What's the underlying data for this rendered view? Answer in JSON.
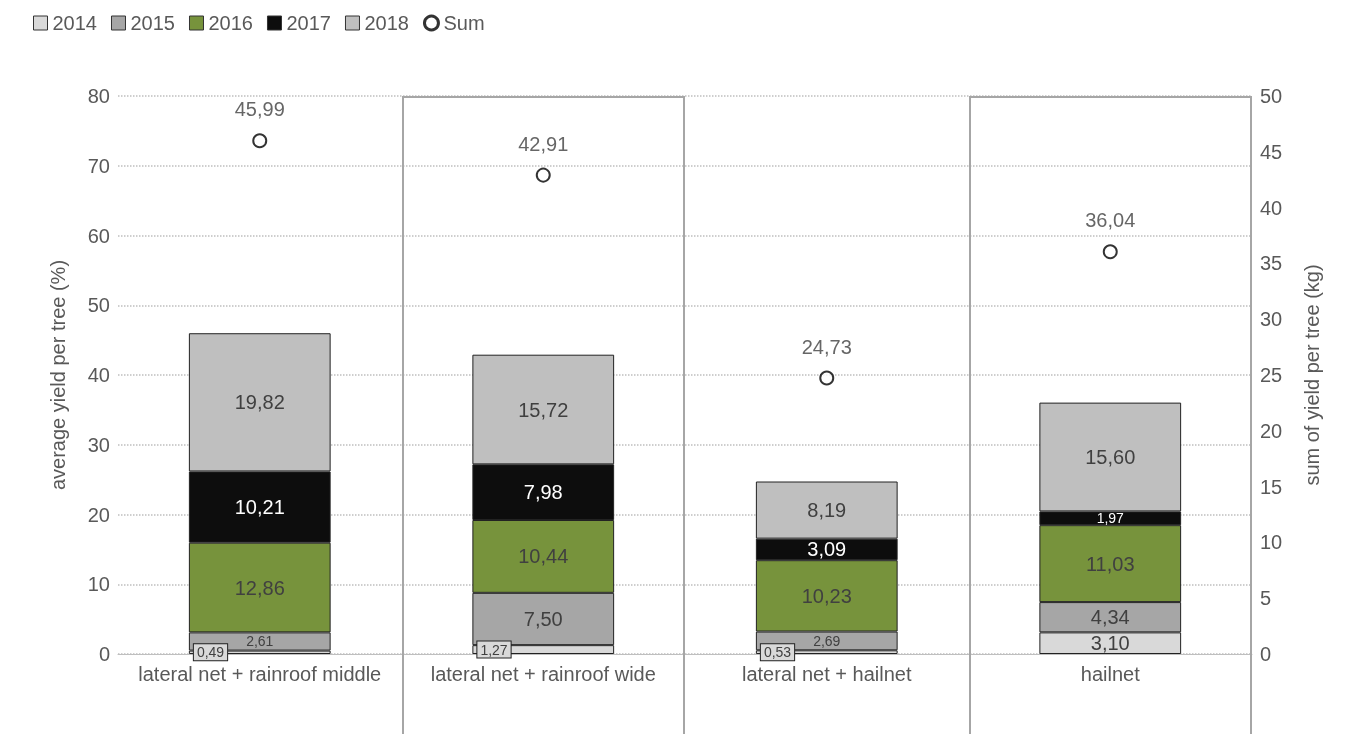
{
  "chart_data": {
    "type": "bar",
    "stacked": true,
    "ylabel": "average yield per tree (%)",
    "y2label": "sum of yield per tree (kg)",
    "categories": [
      "lateral net + rainroof middle",
      "lateral net + rainroof wide",
      "lateral net + hailnet",
      "hailnet"
    ],
    "series": [
      {
        "name": "2014",
        "color": "#d9d9d9",
        "values": [
          0.49,
          1.27,
          0.53,
          3.1
        ],
        "value_labels": [
          "0,49",
          "1,27",
          "0,53",
          "3,10"
        ]
      },
      {
        "name": "2015",
        "color": "#a6a6a6",
        "values": [
          2.61,
          7.5,
          2.69,
          4.34
        ],
        "value_labels": [
          "2,61",
          "7,50",
          "2,69",
          "4,34"
        ]
      },
      {
        "name": "2016",
        "color": "#77933c",
        "values": [
          12.86,
          10.44,
          10.23,
          11.03
        ],
        "value_labels": [
          "12,86",
          "10,44",
          "10,23",
          "11,03"
        ]
      },
      {
        "name": "2017",
        "color": "#0d0d0d",
        "values": [
          10.21,
          7.98,
          3.09,
          1.97
        ],
        "value_labels": [
          "10,21",
          "7,98",
          "3,09",
          "1,97"
        ]
      },
      {
        "name": "2018",
        "color": "#bfbfbf",
        "values": [
          19.82,
          15.72,
          8.19,
          15.6
        ],
        "value_labels": [
          "19,82",
          "15,72",
          "8,19",
          "15,60"
        ]
      },
      {
        "name": "Sum",
        "type": "scatter",
        "axis": "y2",
        "marker": "circle",
        "color": "#000000",
        "values": [
          45.99,
          42.91,
          24.73,
          36.04
        ],
        "value_labels": [
          "45,99",
          "42,91",
          "24,73",
          "36,04"
        ]
      }
    ],
    "ylim": [
      0,
      80
    ],
    "yticks": [
      0,
      10,
      20,
      30,
      40,
      50,
      60,
      70,
      80
    ],
    "y2lim": [
      0,
      50
    ],
    "y2ticks": [
      0,
      5,
      10,
      15,
      20,
      25,
      30,
      35,
      40,
      45,
      50
    ],
    "grid": "y",
    "legend": "top left"
  }
}
